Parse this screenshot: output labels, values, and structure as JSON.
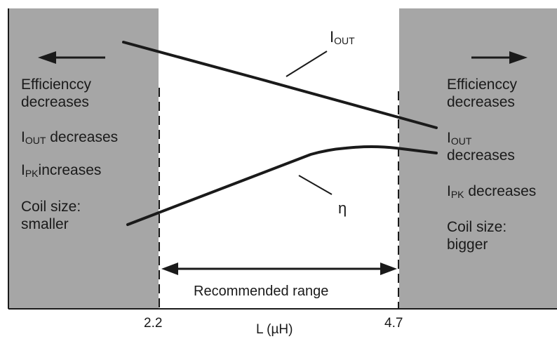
{
  "diagram": {
    "shade_color": "#a6a6a6",
    "line_color": "#1a1a1a",
    "curves": {
      "iout": {
        "label_main": "I",
        "label_sub": "OUT"
      },
      "eta": {
        "label": "η"
      }
    },
    "left_region": {
      "arrow_direction": "left",
      "efficiency_line1": "Efficienccy",
      "efficiency_line2": "decreases",
      "iout_main": "I",
      "iout_sub": "OUT",
      "iout_rest": " decreases",
      "ipk_main": "I",
      "ipk_sub": "PK",
      "ipk_rest": "increases",
      "coil_line1": "Coil size:",
      "coil_line2": "smaller"
    },
    "right_region": {
      "arrow_direction": "right",
      "efficiency_line1": "Efficienccy",
      "efficiency_line2": "decreases",
      "iout_main": "I",
      "iout_sub": "OUT",
      "iout_line2": "decreases",
      "ipk_main": "I",
      "ipk_sub": "PK",
      "ipk_rest": " decreases",
      "coil_line1": "Coil size:",
      "coil_line2": "bigger"
    },
    "range_label": "Recommended range",
    "x_ticks": [
      "2.2",
      "4.7"
    ],
    "x_axis_label": "L (µH)"
  }
}
